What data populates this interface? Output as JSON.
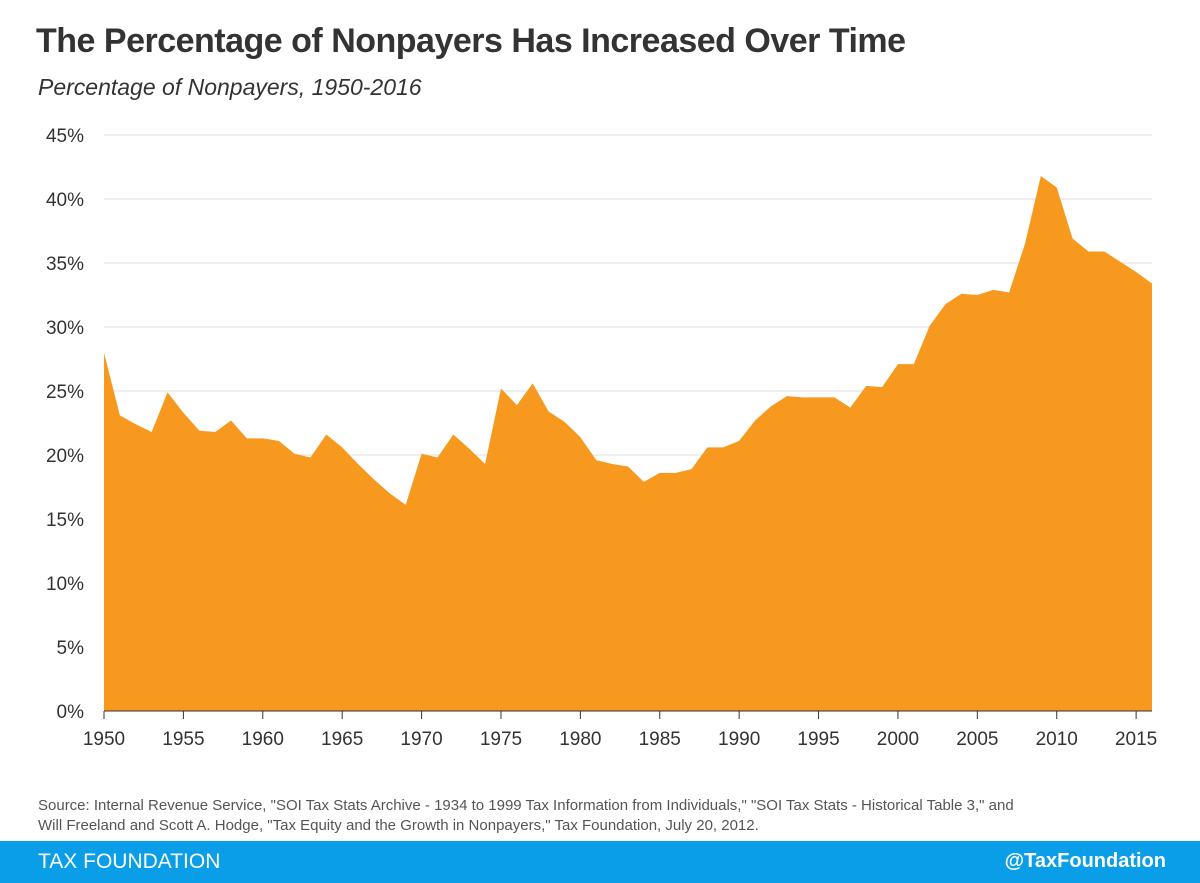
{
  "chart_data": {
    "type": "area",
    "title": "The Percentage of Nonpayers Has Increased Over Time",
    "subtitle": "Percentage of Nonpayers, 1950-2016",
    "xlabel": "",
    "ylabel": "",
    "xlim": [
      1950,
      2016
    ],
    "ylim": [
      0,
      45
    ],
    "y_ticks": [
      0,
      5,
      10,
      15,
      20,
      25,
      30,
      35,
      40,
      45
    ],
    "y_tick_labels": [
      "0%",
      "5%",
      "10%",
      "15%",
      "20%",
      "25%",
      "30%",
      "35%",
      "40%",
      "45%"
    ],
    "x_ticks": [
      1950,
      1955,
      1960,
      1965,
      1970,
      1975,
      1980,
      1985,
      1990,
      1995,
      2000,
      2005,
      2010,
      2015
    ],
    "x_tick_labels": [
      "1950",
      "1955",
      "1960",
      "1965",
      "1970",
      "1975",
      "1980",
      "1985",
      "1990",
      "1995",
      "2000",
      "2005",
      "2010",
      "2015"
    ],
    "grid": "horizontal",
    "color": "#f7991f",
    "x": [
      1950,
      1951,
      1952,
      1953,
      1954,
      1955,
      1956,
      1957,
      1958,
      1959,
      1960,
      1961,
      1962,
      1963,
      1964,
      1965,
      1966,
      1967,
      1968,
      1969,
      1970,
      1971,
      1972,
      1973,
      1974,
      1975,
      1976,
      1977,
      1978,
      1979,
      1980,
      1981,
      1982,
      1983,
      1984,
      1985,
      1986,
      1987,
      1988,
      1989,
      1990,
      1991,
      1992,
      1993,
      1994,
      1995,
      1996,
      1997,
      1998,
      1999,
      2000,
      2001,
      2002,
      2003,
      2004,
      2005,
      2006,
      2007,
      2008,
      2009,
      2010,
      2011,
      2012,
      2013,
      2014,
      2015,
      2016
    ],
    "values": [
      28.0,
      23.1,
      22.4,
      21.8,
      24.9,
      23.3,
      21.9,
      21.8,
      22.7,
      21.3,
      21.3,
      21.1,
      20.1,
      19.8,
      21.6,
      20.6,
      19.3,
      18.1,
      17.0,
      16.1,
      20.1,
      19.8,
      21.6,
      20.5,
      19.3,
      25.2,
      23.9,
      25.6,
      23.4,
      22.6,
      21.4,
      19.6,
      19.3,
      19.1,
      17.9,
      18.6,
      18.6,
      18.9,
      20.6,
      20.6,
      21.1,
      22.7,
      23.8,
      24.6,
      24.5,
      24.5,
      24.5,
      23.7,
      25.4,
      25.3,
      27.1,
      27.1,
      30.1,
      31.8,
      32.6,
      32.5,
      32.9,
      32.7,
      36.5,
      41.8,
      40.9,
      36.9,
      35.9,
      35.9,
      35.1,
      34.3,
      33.4
    ]
  },
  "source": {
    "line1": "Source: Internal Revenue Service, \"SOI Tax Stats Archive - 1934 to 1999 Tax Information from Individuals,\" \"SOI Tax Stats - Historical Table 3,\" and",
    "line2": "Will Freeland and Scott A. Hodge, \"Tax Equity and the Growth in Nonpayers,\" Tax Foundation, July 20, 2012."
  },
  "footer": {
    "brand": "TAX FOUNDATION",
    "handle": "@TaxFoundation",
    "background": "#0a9ee8"
  }
}
